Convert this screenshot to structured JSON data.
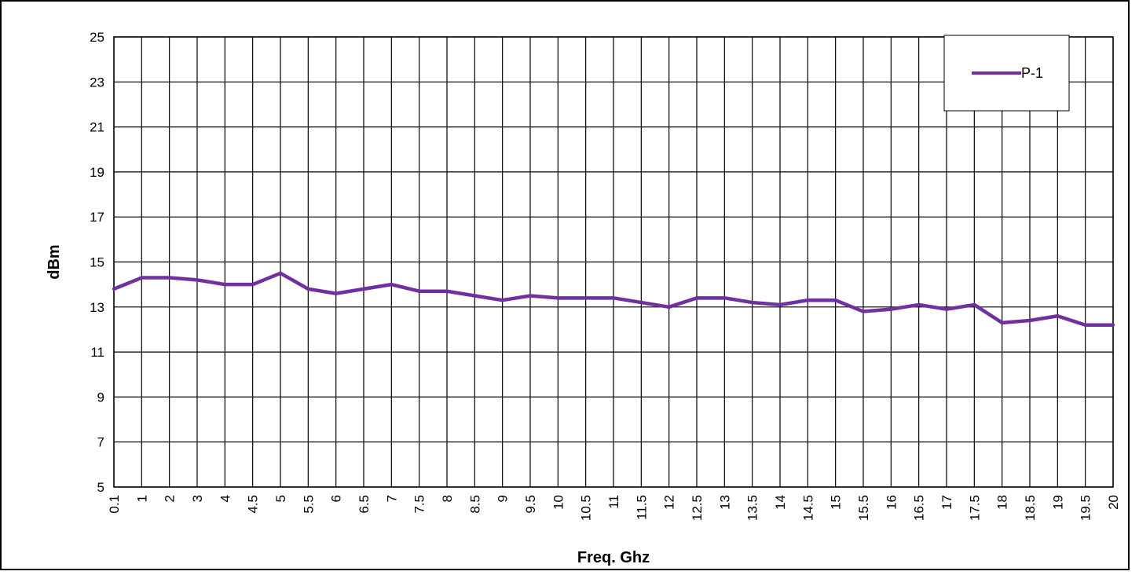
{
  "chart_data": {
    "type": "line",
    "title": "",
    "xlabel": "Freq. Ghz",
    "ylabel": "dBm",
    "ylim": [
      5,
      25
    ],
    "yticks": [
      5,
      7,
      9,
      11,
      13,
      15,
      17,
      19,
      21,
      23,
      25
    ],
    "grid": true,
    "legend": "top-right",
    "categories": [
      "0.1",
      "1",
      "2",
      "3",
      "4",
      "4.5",
      "5",
      "5.5",
      "6",
      "6.5",
      "7",
      "7.5",
      "8",
      "8.5",
      "9",
      "9.5",
      "10",
      "10.5",
      "11",
      "11.5",
      "12",
      "12.5",
      "13",
      "13.5",
      "14",
      "14.5",
      "15",
      "15.5",
      "16",
      "16.5",
      "17",
      "17.5",
      "18",
      "18.5",
      "19",
      "19.5",
      "20"
    ],
    "series": [
      {
        "name": "P-1",
        "color": "#7030A0",
        "values": [
          13.8,
          14.3,
          14.3,
          14.2,
          14.0,
          14.0,
          14.5,
          13.8,
          13.6,
          13.8,
          14.0,
          13.7,
          13.7,
          13.5,
          13.3,
          13.5,
          13.4,
          13.4,
          13.4,
          13.2,
          13.0,
          13.4,
          13.4,
          13.2,
          13.1,
          13.3,
          13.3,
          12.8,
          12.9,
          13.1,
          12.9,
          13.1,
          12.3,
          12.4,
          12.6,
          12.2,
          12.2
        ]
      }
    ]
  }
}
